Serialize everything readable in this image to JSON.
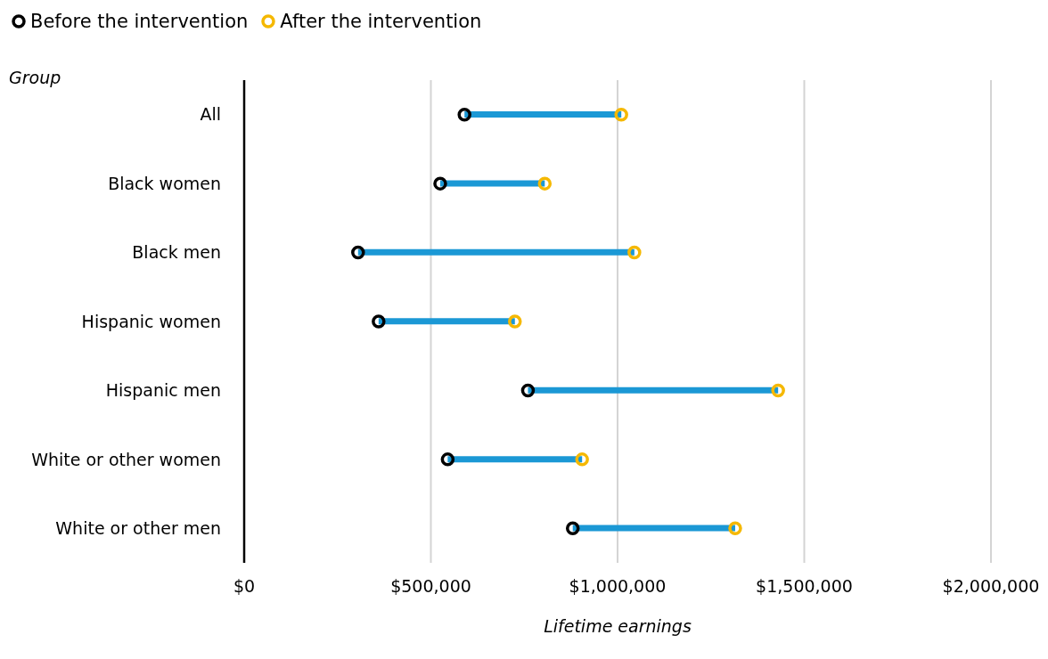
{
  "chart_data": {
    "type": "bar",
    "orientation": "horizontal",
    "categories": [
      "All",
      "Black women",
      "Black men",
      "Hispanic women",
      "Hispanic men",
      "White or other women",
      "White or other men"
    ],
    "series": [
      {
        "color": "#1b98d5",
        "base": [
          590000,
          525000,
          305000,
          360000,
          760000,
          545000,
          880000
        ],
        "values": [
          420000,
          280000,
          740000,
          365000,
          670000,
          360000,
          435000
        ]
      },
      {
        "type": "scatter",
        "name": "Before the intervention",
        "color": "#000000",
        "values": [
          590000,
          525000,
          305000,
          360000,
          760000,
          545000,
          880000
        ]
      },
      {
        "type": "scatter",
        "name": "After the intervention",
        "color": "#f5b800",
        "values": [
          1010000,
          805000,
          1045000,
          725000,
          1430000,
          905000,
          1315000
        ]
      }
    ],
    "xlim": [
      0,
      2000000
    ],
    "xticks": [
      {
        "value": 0,
        "label": "$0"
      },
      {
        "value": 500000,
        "label": "$500,000"
      },
      {
        "value": 1000000,
        "label": "$1,000,000"
      },
      {
        "value": 1500000,
        "label": "$1,500,000"
      },
      {
        "value": 2000000,
        "label": "$2,000,000"
      }
    ],
    "xlabel": "Lifetime earnings",
    "ylabel": "Group",
    "grid": "x",
    "legend": "top left",
    "marker": "circle"
  }
}
